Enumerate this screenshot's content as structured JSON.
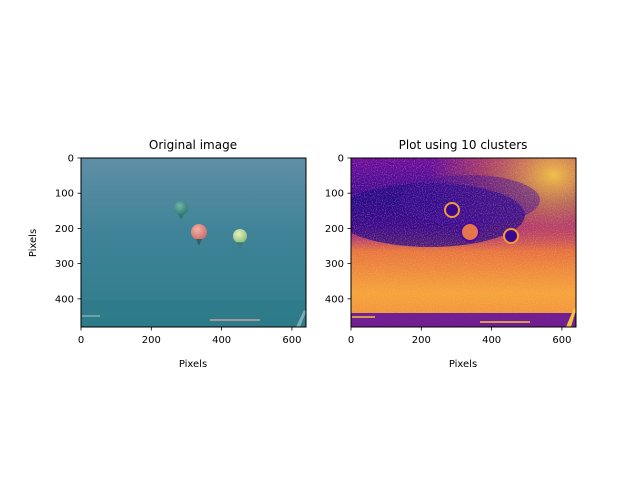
{
  "chart_data": [
    {
      "type": "image",
      "title": "Original image",
      "xlabel": "Pixels",
      "ylabel": "Pixels",
      "xlim": [
        0,
        640
      ],
      "ylim": [
        480,
        0
      ],
      "xticks": [
        0,
        200,
        400,
        600
      ],
      "yticks": [
        0,
        100,
        200,
        300,
        400
      ],
      "content": {
        "background": "teal underwater-style scene",
        "balloons": [
          {
            "color": "#3e8f87",
            "cx": 285,
            "cy": 145
          },
          {
            "color": "#e08a82",
            "cx": 340,
            "cy": 210
          },
          {
            "color": "#b9d89a",
            "cx": 450,
            "cy": 220
          }
        ]
      }
    },
    {
      "type": "image",
      "title": "Plot using 10 clusters",
      "xlabel": "Pixels",
      "ylabel": "",
      "xlim": [
        0,
        640
      ],
      "ylim": [
        480,
        0
      ],
      "xticks": [
        0,
        200,
        400,
        600
      ],
      "yticks": [
        0,
        100,
        200,
        300,
        400
      ],
      "colormap": "plasma",
      "clusters": 10
    }
  ],
  "colors": {
    "teal_top": "#5b8fa4",
    "teal_bottom": "#2f7f8f",
    "plasma_purple": "#5a0aa8",
    "plasma_dark": "#23058a",
    "plasma_magenta": "#b12a90",
    "plasma_orange": "#f48e3a",
    "plasma_yellow": "#f7d13d"
  }
}
